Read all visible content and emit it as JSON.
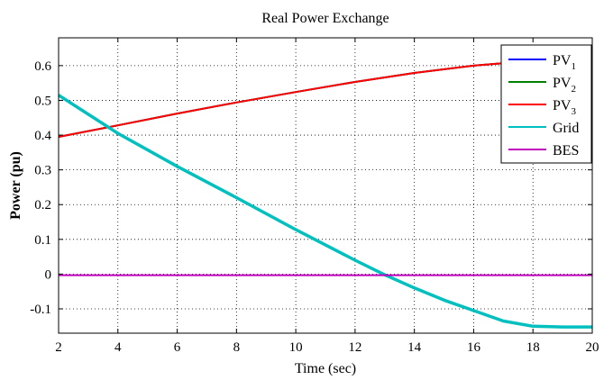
{
  "chart_data": {
    "type": "line",
    "title": "Real Power Exchange",
    "xlabel": "Time (sec)",
    "ylabel": "Power (pu)",
    "xlim": [
      2,
      20
    ],
    "ylim": [
      -0.17,
      0.68
    ],
    "xticks": [
      2,
      4,
      6,
      8,
      10,
      12,
      14,
      16,
      18,
      20
    ],
    "yticks": [
      -0.1,
      0,
      0.1,
      0.2,
      0.3,
      0.4,
      0.5,
      0.6
    ],
    "xtick_labels": [
      "2",
      "4",
      "6",
      "8",
      "10",
      "12",
      "14",
      "16",
      "18",
      "20"
    ],
    "ytick_labels": [
      "-0.1",
      "0",
      "0.1",
      "0.2",
      "0.3",
      "0.4",
      "0.5",
      "0.6"
    ],
    "grid": true,
    "legend_position": "top-right",
    "series": [
      {
        "name": "PV",
        "subscript": "1",
        "color": "#0000ff",
        "x": [
          2,
          4,
          6,
          8,
          10,
          12,
          14,
          16,
          18,
          20
        ],
        "y": [
          0.395,
          0.428,
          0.462,
          0.494,
          0.524,
          0.553,
          0.579,
          0.6,
          0.614,
          0.621
        ]
      },
      {
        "name": "PV",
        "subscript": "2",
        "color": "#008000",
        "x": [
          2,
          4,
          6,
          8,
          10,
          12,
          14,
          16,
          18,
          20
        ],
        "y": [
          0.395,
          0.428,
          0.462,
          0.494,
          0.524,
          0.553,
          0.579,
          0.6,
          0.614,
          0.621
        ]
      },
      {
        "name": "PV",
        "subscript": "3",
        "color": "#ff0000",
        "x": [
          2,
          4,
          6,
          8,
          10,
          12,
          14,
          16,
          18,
          20
        ],
        "y": [
          0.395,
          0.428,
          0.462,
          0.494,
          0.524,
          0.553,
          0.579,
          0.6,
          0.614,
          0.621
        ]
      },
      {
        "name": "Grid",
        "color": "#00bfbf",
        "x": [
          2,
          4,
          6,
          8,
          10,
          12,
          13,
          14,
          15,
          16,
          17,
          18,
          19,
          20
        ],
        "y": [
          0.515,
          0.405,
          0.31,
          0.22,
          0.128,
          0.04,
          -0.002,
          -0.04,
          -0.075,
          -0.105,
          -0.135,
          -0.15,
          -0.152,
          -0.152
        ]
      },
      {
        "name": "BES",
        "color": "#bf00bf",
        "x": [
          2,
          20
        ],
        "y": [
          -0.003,
          -0.003
        ]
      }
    ]
  }
}
